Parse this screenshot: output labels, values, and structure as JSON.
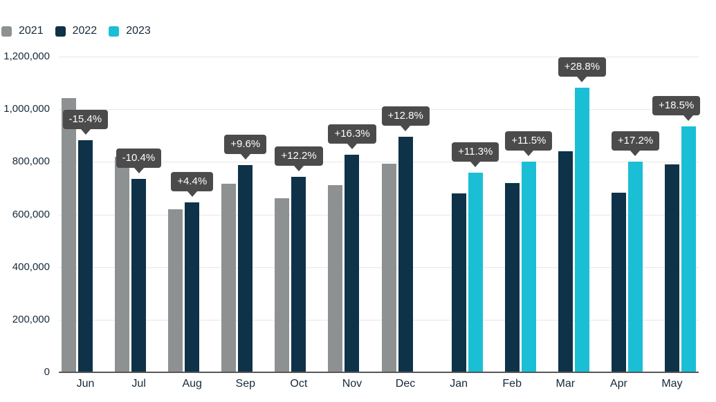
{
  "chart_data": {
    "type": "bar",
    "title": "",
    "xlabel": "",
    "ylabel": "",
    "categories": [
      "Jun",
      "Jul",
      "Aug",
      "Sep",
      "Oct",
      "Nov",
      "Dec",
      "Jan",
      "Feb",
      "Mar",
      "Apr",
      "May"
    ],
    "series": [
      {
        "name": "2021",
        "color": "#8e9192",
        "values": [
          1043000,
          820000,
          620000,
          718000,
          662000,
          712000,
          794000,
          null,
          null,
          null,
          null,
          null
        ]
      },
      {
        "name": "2022",
        "color": "#0e3248",
        "values": [
          883000,
          735000,
          647000,
          787000,
          743000,
          828000,
          896000,
          681000,
          719000,
          841000,
          684000,
          790000
        ]
      },
      {
        "name": "2023",
        "color": "#1abfd5",
        "values": [
          null,
          null,
          null,
          null,
          null,
          null,
          null,
          758000,
          802000,
          1083000,
          802000,
          936000
        ]
      }
    ],
    "annotations": [
      {
        "category": "Jun",
        "series": "2022",
        "text": "-15.4%"
      },
      {
        "category": "Jul",
        "series": "2022",
        "text": "-10.4%"
      },
      {
        "category": "Aug",
        "series": "2022",
        "text": "+4.4%"
      },
      {
        "category": "Sep",
        "series": "2022",
        "text": "+9.6%"
      },
      {
        "category": "Oct",
        "series": "2022",
        "text": "+12.2%"
      },
      {
        "category": "Nov",
        "series": "2022",
        "text": "+16.3%"
      },
      {
        "category": "Dec",
        "series": "2022",
        "text": "+12.8%"
      },
      {
        "category": "Jan",
        "series": "2023",
        "text": "+11.3%"
      },
      {
        "category": "Feb",
        "series": "2023",
        "text": "+11.5%"
      },
      {
        "category": "Mar",
        "series": "2023",
        "text": "+28.8%"
      },
      {
        "category": "Apr",
        "series": "2023",
        "text": "+17.2%"
      },
      {
        "category": "May",
        "series": "2023",
        "text": "+18.5%"
      }
    ],
    "y_axis": {
      "min": 0,
      "max": 1200000,
      "tick_interval": 200000,
      "tick_labels": [
        "0",
        "200,000",
        "400,000",
        "600,000",
        "800,000",
        "1,000,000",
        "1,200,000"
      ]
    },
    "ylim": [
      0,
      1200000
    ],
    "grid": true,
    "legend_position": "top-left"
  },
  "colors": {
    "background": "#ffffff",
    "tooltip_bg": "#4b4b4b",
    "tooltip_text": "#ffffff",
    "grid_line": "#e7e7e7",
    "axis_line": "#565656",
    "axis_label": "#16293a"
  }
}
